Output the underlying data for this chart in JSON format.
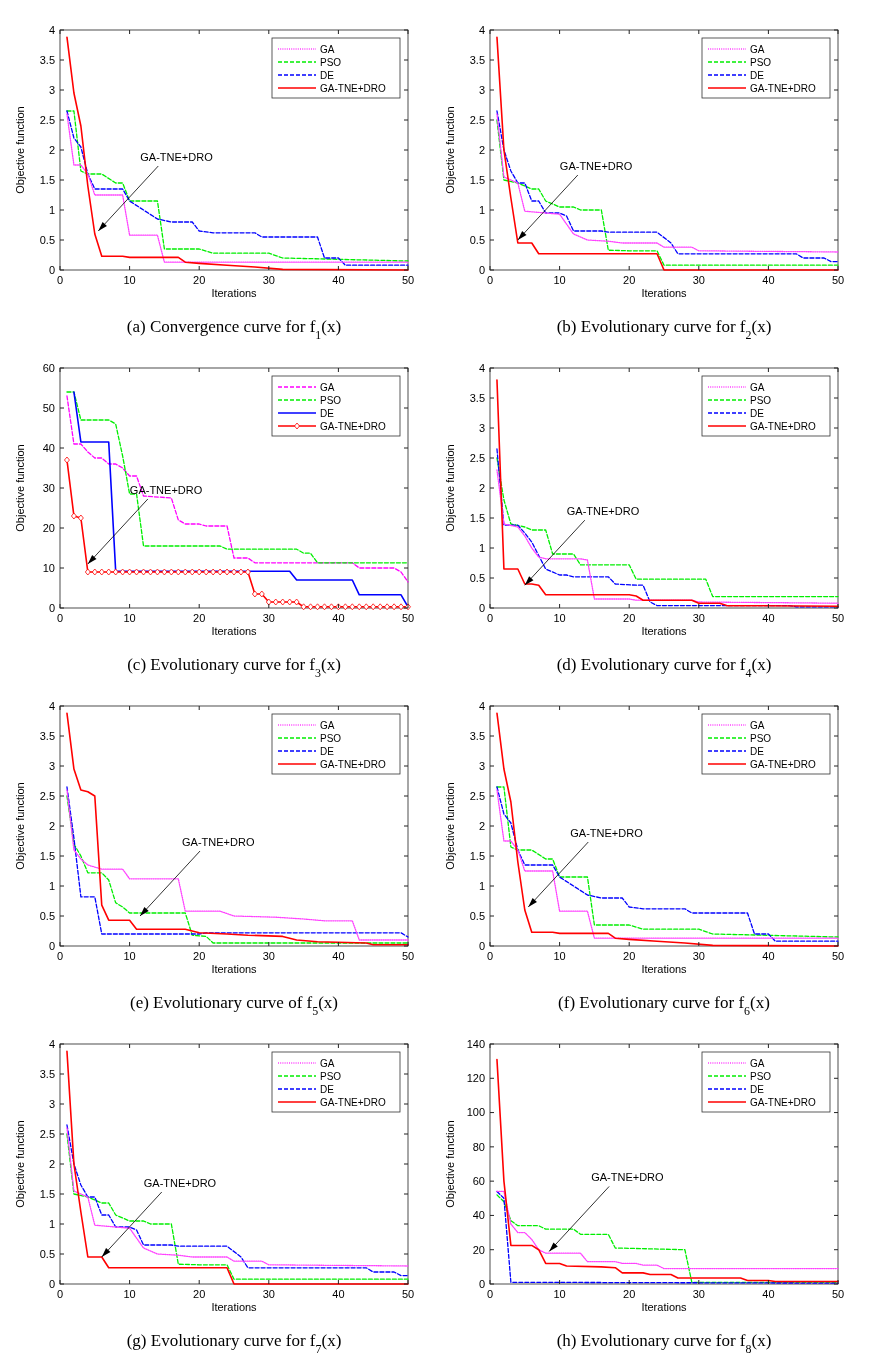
{
  "chart_data": [
    {
      "type": "line",
      "title": "(a) Convergence curve for  f$_{1}$(x)",
      "xlabel": "Iterations",
      "ylabel": "Objective function",
      "xlim": [
        0,
        50
      ],
      "xticks": [
        0,
        10,
        20,
        30,
        40,
        50
      ],
      "ylim": [
        0,
        4
      ],
      "yticks": [
        0,
        0.5,
        1,
        1.5,
        2,
        2.5,
        3,
        3.5,
        4
      ],
      "legend": "top right",
      "annotations": [
        {
          "text": "GA-TNE+DRO",
          "x": 5.5,
          "y": 0.65
        }
      ],
      "series": [
        {
          "name": "GA",
          "color": "#ff40ff",
          "line_style": "dotted",
          "x": [
            1,
            2,
            3,
            4,
            5,
            9,
            10,
            14,
            15,
            50
          ],
          "values": [
            2.6,
            1.75,
            1.75,
            1.6,
            1.25,
            1.25,
            0.58,
            0.58,
            0.13,
            0.13
          ]
        },
        {
          "name": "PSO",
          "color": "#00ee00",
          "line_style": "dashed",
          "x": [
            1,
            2,
            3,
            4,
            6,
            8,
            9,
            10,
            14,
            15,
            20,
            22,
            30,
            32,
            50
          ],
          "values": [
            2.65,
            2.65,
            1.65,
            1.6,
            1.6,
            1.45,
            1.45,
            1.15,
            1.15,
            0.35,
            0.35,
            0.28,
            0.28,
            0.2,
            0.15
          ]
        },
        {
          "name": "DE",
          "color": "#0000ff",
          "line_style": "dashed",
          "x": [
            1,
            2,
            3,
            4,
            5,
            9,
            10,
            12,
            14,
            16,
            19,
            20,
            22,
            28,
            29,
            37,
            38,
            40,
            41,
            50
          ],
          "values": [
            2.65,
            2.2,
            2.05,
            1.6,
            1.35,
            1.35,
            1.15,
            1.0,
            0.85,
            0.8,
            0.8,
            0.65,
            0.62,
            0.62,
            0.55,
            0.55,
            0.2,
            0.2,
            0.08,
            0.08
          ]
        },
        {
          "name": "GA-TNE+DRO",
          "color": "#ff0000",
          "line_style": "solid",
          "x": [
            1,
            2,
            3,
            4,
            5,
            6,
            9,
            10,
            17,
            18,
            20,
            24,
            28,
            32,
            50
          ],
          "values": [
            3.88,
            2.95,
            2.4,
            1.4,
            0.6,
            0.23,
            0.23,
            0.21,
            0.21,
            0.13,
            0.11,
            0.08,
            0.05,
            0.01,
            0
          ]
        }
      ]
    },
    {
      "type": "line",
      "title": "(b) Evolutionary curve for  f$_{2}$(x)",
      "xlabel": "Iterations",
      "ylabel": "Objective function",
      "xlim": [
        0,
        50
      ],
      "xticks": [
        0,
        10,
        20,
        30,
        40,
        50
      ],
      "ylim": [
        0,
        4
      ],
      "yticks": [
        0,
        0.5,
        1,
        1.5,
        2,
        2.5,
        3,
        3.5,
        4
      ],
      "legend": "top right",
      "annotations": [
        {
          "text": "GA-TNE+DRO",
          "x": 4,
          "y": 0.5
        }
      ],
      "series": [
        {
          "name": "GA",
          "color": "#ff40ff",
          "line_style": "dotted",
          "x": [
            1,
            2,
            3,
            4,
            5,
            10,
            12,
            14,
            17,
            19,
            24,
            25,
            29,
            30,
            50
          ],
          "values": [
            2.6,
            1.55,
            1.5,
            1.45,
            0.98,
            0.93,
            0.6,
            0.5,
            0.48,
            0.45,
            0.45,
            0.38,
            0.38,
            0.32,
            0.3
          ]
        },
        {
          "name": "PSO",
          "color": "#00ee00",
          "line_style": "dashed",
          "x": [
            1,
            2,
            4,
            6,
            7,
            8,
            10,
            12,
            13,
            16,
            17,
            20,
            24,
            25,
            50
          ],
          "values": [
            2.5,
            1.5,
            1.45,
            1.35,
            1.35,
            1.15,
            1.05,
            1.05,
            1.0,
            1.0,
            0.33,
            0.32,
            0.32,
            0.08,
            0.08
          ]
        },
        {
          "name": "DE",
          "color": "#0000ff",
          "line_style": "dashed",
          "x": [
            1,
            2,
            3,
            4,
            5,
            6,
            7,
            8,
            10,
            11,
            12,
            16,
            17,
            24,
            26,
            27,
            44,
            45,
            48,
            49,
            50
          ],
          "values": [
            2.65,
            2.0,
            1.65,
            1.45,
            1.45,
            1.15,
            1.15,
            0.95,
            0.95,
            0.9,
            0.65,
            0.65,
            0.63,
            0.63,
            0.45,
            0.27,
            0.27,
            0.2,
            0.2,
            0.14,
            0.14
          ]
        },
        {
          "name": "GA-TNE+DRO",
          "color": "#ff0000",
          "line_style": "solid",
          "x": [
            1,
            2,
            3,
            4,
            6,
            7,
            24,
            25,
            50
          ],
          "values": [
            3.88,
            2.0,
            1.2,
            0.45,
            0.45,
            0.27,
            0.27,
            0,
            0
          ]
        }
      ]
    },
    {
      "type": "line",
      "title": "(c) Evolutionary curve for  f$_{3}$(x)",
      "xlabel": "Iterations",
      "ylabel": "Objective function",
      "xlim": [
        0,
        50
      ],
      "xticks": [
        0,
        10,
        20,
        30,
        40,
        50
      ],
      "ylim": [
        0,
        60
      ],
      "yticks": [
        0,
        10,
        20,
        30,
        40,
        50,
        60
      ],
      "legend": "top right",
      "annotations": [
        {
          "text": "GA-TNE+DRO",
          "x": 4,
          "y": 11
        }
      ],
      "series": [
        {
          "name": "GA",
          "color": "#ff00ff",
          "line_style": "dashed",
          "x": [
            1,
            2,
            3,
            4,
            5,
            6,
            7,
            8,
            9,
            10,
            11,
            12,
            16,
            17,
            18,
            20,
            21,
            24,
            25,
            27,
            28,
            42,
            43,
            48,
            49,
            50
          ],
          "values": [
            53,
            41,
            41,
            39,
            37.5,
            37.5,
            36,
            36,
            35,
            33,
            33,
            28,
            27.5,
            22,
            21,
            21,
            20.5,
            20.5,
            12.5,
            12.5,
            11.3,
            11.3,
            10,
            10,
            9,
            6.5
          ]
        },
        {
          "name": "PSO",
          "color": "#00ee00",
          "line_style": "dashed",
          "x": [
            1,
            2,
            3,
            7,
            8,
            9,
            10,
            11,
            12,
            23,
            24,
            34,
            35,
            36,
            37,
            50
          ],
          "values": [
            54,
            54,
            47,
            47,
            46,
            38,
            28.5,
            28.5,
            15.5,
            15.5,
            14.7,
            14.7,
            13.7,
            13.7,
            11.3,
            11.3
          ]
        },
        {
          "name": "DE",
          "color": "#0000ff",
          "line_style": "solid",
          "x": [
            2,
            3,
            7,
            8,
            33,
            34,
            42,
            43,
            49,
            50
          ],
          "values": [
            54,
            41.5,
            41.5,
            9.2,
            9.2,
            7,
            7,
            3.3,
            3.3,
            0.3
          ]
        },
        {
          "name": "GA-TNE+DRO",
          "color": "#ff0000",
          "line_style": "solid",
          "marker": "diamond",
          "x": [
            1,
            2,
            3,
            4,
            5,
            6,
            7,
            8,
            9,
            10,
            11,
            12,
            13,
            14,
            15,
            16,
            17,
            18,
            19,
            20,
            21,
            22,
            23,
            24,
            25,
            26,
            27,
            28,
            29,
            30,
            31,
            32,
            33,
            34,
            35,
            36,
            37,
            38,
            39,
            40,
            41,
            42,
            43,
            44,
            45,
            46,
            47,
            48,
            49,
            50
          ],
          "values": [
            37,
            23,
            22.5,
            9,
            9,
            9,
            9,
            9,
            9,
            9,
            9,
            9,
            9,
            9,
            9,
            9,
            9,
            9,
            9,
            9,
            9,
            9,
            9,
            9,
            9,
            9,
            9,
            3.5,
            3.5,
            1.5,
            1.5,
            1.5,
            1.5,
            1.5,
            0.3,
            0.3,
            0.3,
            0.3,
            0.3,
            0.3,
            0.3,
            0.3,
            0.3,
            0.3,
            0.3,
            0.3,
            0.3,
            0.3,
            0.3,
            0.3
          ]
        }
      ]
    },
    {
      "type": "line",
      "title": "(d) Evolutionary curve for  f$_{4}$(x)",
      "xlabel": "Iterations",
      "ylabel": "Objective function",
      "xlim": [
        0,
        50
      ],
      "xticks": [
        0,
        10,
        20,
        30,
        40,
        50
      ],
      "ylim": [
        0,
        4
      ],
      "yticks": [
        0,
        0.5,
        1,
        1.5,
        2,
        2.5,
        3,
        3.5,
        4
      ],
      "legend": "top right",
      "annotations": [
        {
          "text": "GA-TNE+DRO",
          "x": 5,
          "y": 0.38
        }
      ],
      "series": [
        {
          "name": "GA",
          "color": "#ff40ff",
          "line_style": "dotted",
          "x": [
            1,
            2,
            4,
            5,
            6,
            7,
            8,
            13,
            14,
            15,
            20,
            21,
            29,
            30,
            50
          ],
          "values": [
            2.3,
            1.4,
            1.35,
            1.2,
            1.0,
            0.85,
            0.82,
            0.82,
            0.8,
            0.15,
            0.15,
            0.13,
            0.13,
            0.1,
            0.08
          ]
        },
        {
          "name": "PSO",
          "color": "#00ee00",
          "line_style": "dashed",
          "x": [
            1,
            2,
            3,
            5,
            6,
            8,
            9,
            12,
            13,
            20,
            21,
            31,
            32,
            50
          ],
          "values": [
            2.5,
            1.8,
            1.4,
            1.35,
            1.3,
            1.3,
            0.9,
            0.9,
            0.72,
            0.72,
            0.48,
            0.48,
            0.19,
            0.19
          ]
        },
        {
          "name": "DE",
          "color": "#0000ff",
          "line_style": "dashed",
          "x": [
            1,
            2,
            4,
            5,
            6,
            8,
            10,
            11,
            12,
            17,
            18,
            21,
            22,
            23,
            24,
            43,
            44,
            50
          ],
          "values": [
            2.65,
            1.38,
            1.38,
            1.25,
            1.1,
            0.65,
            0.55,
            0.55,
            0.52,
            0.52,
            0.4,
            0.38,
            0.38,
            0.1,
            0.04,
            0.04,
            0.02,
            0.02
          ]
        },
        {
          "name": "GA-TNE+DRO",
          "color": "#ff0000",
          "line_style": "solid",
          "x": [
            1,
            2,
            4,
            5,
            6,
            7,
            8,
            20,
            21,
            22,
            29,
            30,
            33,
            34,
            50
          ],
          "values": [
            3.8,
            0.65,
            0.65,
            0.4,
            0.4,
            0.38,
            0.22,
            0.22,
            0.2,
            0.13,
            0.13,
            0.08,
            0.08,
            0.04,
            0.03
          ]
        }
      ]
    },
    {
      "type": "line",
      "title": "(e) Evolutionary curve of  f$_{5}$(x)",
      "xlabel": "Iterations",
      "ylabel": "Objective function",
      "xlim": [
        0,
        50
      ],
      "xticks": [
        0,
        10,
        20,
        30,
        40,
        50
      ],
      "ylim": [
        0,
        4
      ],
      "yticks": [
        0,
        0.5,
        1,
        1.5,
        2,
        2.5,
        3,
        3.5,
        4
      ],
      "legend": "top right",
      "annotations": [
        {
          "text": "GA-TNE+DRO",
          "x": 11.5,
          "y": 0.5
        }
      ],
      "series": [
        {
          "name": "GA",
          "color": "#ff40ff",
          "line_style": "dotted",
          "x": [
            1,
            2,
            3,
            4,
            6,
            9,
            10,
            17,
            18,
            23,
            25,
            31,
            35,
            38,
            42,
            43,
            50
          ],
          "values": [
            2.6,
            1.6,
            1.45,
            1.35,
            1.28,
            1.28,
            1.12,
            1.12,
            0.58,
            0.58,
            0.5,
            0.48,
            0.45,
            0.42,
            0.42,
            0.1,
            0.1
          ]
        },
        {
          "name": "PSO",
          "color": "#00ee00",
          "line_style": "dashed",
          "x": [
            1,
            2,
            3,
            4,
            6,
            7,
            8,
            9,
            10,
            18,
            19,
            21,
            22,
            50
          ],
          "values": [
            2.5,
            1.7,
            1.5,
            1.22,
            1.22,
            1.1,
            0.72,
            0.65,
            0.55,
            0.55,
            0.18,
            0.16,
            0.05,
            0.05
          ]
        },
        {
          "name": "DE",
          "color": "#0000ff",
          "line_style": "dashed",
          "x": [
            1,
            2,
            3,
            5,
            6,
            20,
            21,
            49,
            50
          ],
          "values": [
            2.65,
            1.8,
            0.82,
            0.82,
            0.2,
            0.2,
            0.22,
            0.22,
            0.15
          ]
        },
        {
          "name": "GA-TNE+DRO",
          "color": "#ff0000",
          "line_style": "solid",
          "x": [
            1,
            2,
            3,
            4,
            5,
            6,
            7,
            10,
            11,
            18,
            19,
            20,
            24,
            27,
            32,
            34,
            37,
            44,
            45,
            50
          ],
          "values": [
            3.88,
            2.95,
            2.6,
            2.57,
            2.5,
            0.68,
            0.43,
            0.43,
            0.28,
            0.28,
            0.25,
            0.22,
            0.2,
            0.18,
            0.16,
            0.1,
            0.07,
            0.05,
            0.02,
            0.02
          ]
        }
      ]
    },
    {
      "type": "line",
      "title": "(f) Evolutionary curve for  f$_{6}$(x)",
      "xlabel": "Iterations",
      "ylabel": "Objective function",
      "xlim": [
        0,
        50
      ],
      "xticks": [
        0,
        10,
        20,
        30,
        40,
        50
      ],
      "ylim": [
        0,
        4
      ],
      "yticks": [
        0,
        0.5,
        1,
        1.5,
        2,
        2.5,
        3,
        3.5,
        4
      ],
      "legend": "top right",
      "annotations": [
        {
          "text": "GA-TNE+DRO",
          "x": 5.5,
          "y": 0.65
        }
      ],
      "series": [
        {
          "name": "GA",
          "color": "#ff40ff",
          "line_style": "dotted",
          "x": [
            1,
            2,
            3,
            4,
            5,
            9,
            10,
            14,
            15,
            50
          ],
          "values": [
            2.6,
            1.75,
            1.75,
            1.6,
            1.25,
            1.25,
            0.58,
            0.58,
            0.13,
            0.13
          ]
        },
        {
          "name": "PSO",
          "color": "#00ee00",
          "line_style": "dashed",
          "x": [
            1,
            2,
            3,
            4,
            6,
            8,
            9,
            10,
            14,
            15,
            20,
            22,
            30,
            32,
            50
          ],
          "values": [
            2.65,
            2.65,
            1.65,
            1.6,
            1.6,
            1.45,
            1.45,
            1.15,
            1.15,
            0.35,
            0.35,
            0.28,
            0.28,
            0.2,
            0.15
          ]
        },
        {
          "name": "DE",
          "color": "#0000ff",
          "line_style": "dashed",
          "x": [
            1,
            2,
            3,
            4,
            5,
            9,
            10,
            12,
            14,
            16,
            19,
            20,
            22,
            28,
            29,
            37,
            38,
            40,
            41,
            50
          ],
          "values": [
            2.65,
            2.2,
            2.05,
            1.6,
            1.35,
            1.35,
            1.15,
            1.0,
            0.85,
            0.8,
            0.8,
            0.65,
            0.62,
            0.62,
            0.55,
            0.55,
            0.2,
            0.2,
            0.08,
            0.08
          ]
        },
        {
          "name": "GA-TNE+DRO",
          "color": "#ff0000",
          "line_style": "solid",
          "x": [
            1,
            2,
            3,
            4,
            5,
            6,
            9,
            10,
            17,
            18,
            20,
            24,
            28,
            32,
            50
          ],
          "values": [
            3.88,
            2.95,
            2.4,
            1.4,
            0.6,
            0.23,
            0.23,
            0.21,
            0.21,
            0.13,
            0.11,
            0.08,
            0.05,
            0.01,
            0
          ]
        }
      ]
    },
    {
      "type": "line",
      "title": "(g) Evolutionary curve for  f$_{7}$(x)",
      "xlabel": "Iterations",
      "ylabel": "Objective function",
      "xlim": [
        0,
        50
      ],
      "xticks": [
        0,
        10,
        20,
        30,
        40,
        50
      ],
      "ylim": [
        0,
        4
      ],
      "yticks": [
        0,
        0.5,
        1,
        1.5,
        2,
        2.5,
        3,
        3.5,
        4
      ],
      "legend": "top right",
      "annotations": [
        {
          "text": "GA-TNE+DRO",
          "x": 6,
          "y": 0.45
        }
      ],
      "series": [
        {
          "name": "GA",
          "color": "#ff40ff",
          "line_style": "dotted",
          "x": [
            1,
            2,
            3,
            4,
            5,
            10,
            12,
            14,
            17,
            19,
            24,
            25,
            29,
            30,
            50
          ],
          "values": [
            2.6,
            1.55,
            1.5,
            1.45,
            0.98,
            0.93,
            0.6,
            0.5,
            0.48,
            0.45,
            0.45,
            0.38,
            0.38,
            0.32,
            0.3
          ]
        },
        {
          "name": "PSO",
          "color": "#00ee00",
          "line_style": "dashed",
          "x": [
            1,
            2,
            4,
            6,
            7,
            8,
            10,
            12,
            13,
            16,
            17,
            20,
            24,
            25,
            50
          ],
          "values": [
            2.5,
            1.5,
            1.45,
            1.35,
            1.35,
            1.15,
            1.05,
            1.05,
            1.0,
            1.0,
            0.33,
            0.32,
            0.32,
            0.08,
            0.08
          ]
        },
        {
          "name": "DE",
          "color": "#0000ff",
          "line_style": "dashed",
          "x": [
            1,
            2,
            3,
            4,
            5,
            6,
            7,
            8,
            10,
            11,
            12,
            16,
            17,
            24,
            26,
            27,
            44,
            45,
            48,
            49,
            50
          ],
          "values": [
            2.65,
            2.0,
            1.65,
            1.45,
            1.45,
            1.15,
            1.15,
            0.95,
            0.95,
            0.9,
            0.65,
            0.65,
            0.63,
            0.63,
            0.45,
            0.27,
            0.27,
            0.2,
            0.2,
            0.14,
            0.14
          ]
        },
        {
          "name": "GA-TNE+DRO",
          "color": "#ff0000",
          "line_style": "solid",
          "x": [
            1,
            2,
            3,
            4,
            6,
            7,
            24,
            25,
            50
          ],
          "values": [
            3.88,
            2.0,
            1.2,
            0.45,
            0.45,
            0.27,
            0.27,
            0,
            0
          ]
        }
      ]
    },
    {
      "type": "line",
      "title": "(h) Evolutionary curve for  f$_{8}$(x)",
      "xlabel": "Iterations",
      "ylabel": "Objective function",
      "xlim": [
        0,
        50
      ],
      "xticks": [
        0,
        10,
        20,
        30,
        40,
        50
      ],
      "ylim": [
        0,
        140
      ],
      "yticks": [
        0,
        20,
        40,
        60,
        80,
        100,
        120,
        140
      ],
      "legend": "top right",
      "annotations": [
        {
          "text": "GA-TNE+DRO",
          "x": 8.5,
          "y": 19
        }
      ],
      "series": [
        {
          "name": "GA",
          "color": "#ff40ff",
          "line_style": "dotted",
          "x": [
            1,
            2,
            3,
            4,
            5,
            6,
            7,
            8,
            13,
            14,
            18,
            19,
            21,
            22,
            24,
            25,
            50
          ],
          "values": [
            54,
            54,
            35,
            30,
            30,
            26,
            20,
            18,
            18,
            13,
            13,
            12,
            12,
            11,
            11,
            9,
            9
          ]
        },
        {
          "name": "PSO",
          "color": "#00ee00",
          "line_style": "dashed",
          "x": [
            1,
            2,
            3,
            4,
            7,
            8,
            12,
            13,
            17,
            18,
            28,
            29,
            50
          ],
          "values": [
            52,
            48,
            37,
            34,
            34,
            32,
            32,
            29,
            29,
            21,
            20,
            1,
            1
          ]
        },
        {
          "name": "DE",
          "color": "#0000ff",
          "line_style": "dashed",
          "x": [
            1,
            2,
            3,
            50
          ],
          "values": [
            54,
            50,
            1,
            0.5
          ]
        },
        {
          "name": "GA-TNE+DRO",
          "color": "#ff0000",
          "line_style": "solid",
          "x": [
            1,
            2,
            3,
            6,
            7,
            8,
            10,
            11,
            16,
            18,
            19,
            22,
            23,
            26,
            27,
            36,
            37,
            40,
            41,
            50
          ],
          "values": [
            131,
            60,
            22.5,
            22.5,
            20,
            12,
            12,
            10.5,
            10,
            9.5,
            6.5,
            6.5,
            5.5,
            5.5,
            3.5,
            3.5,
            2,
            2,
            1.5,
            1.5
          ]
        }
      ]
    }
  ]
}
